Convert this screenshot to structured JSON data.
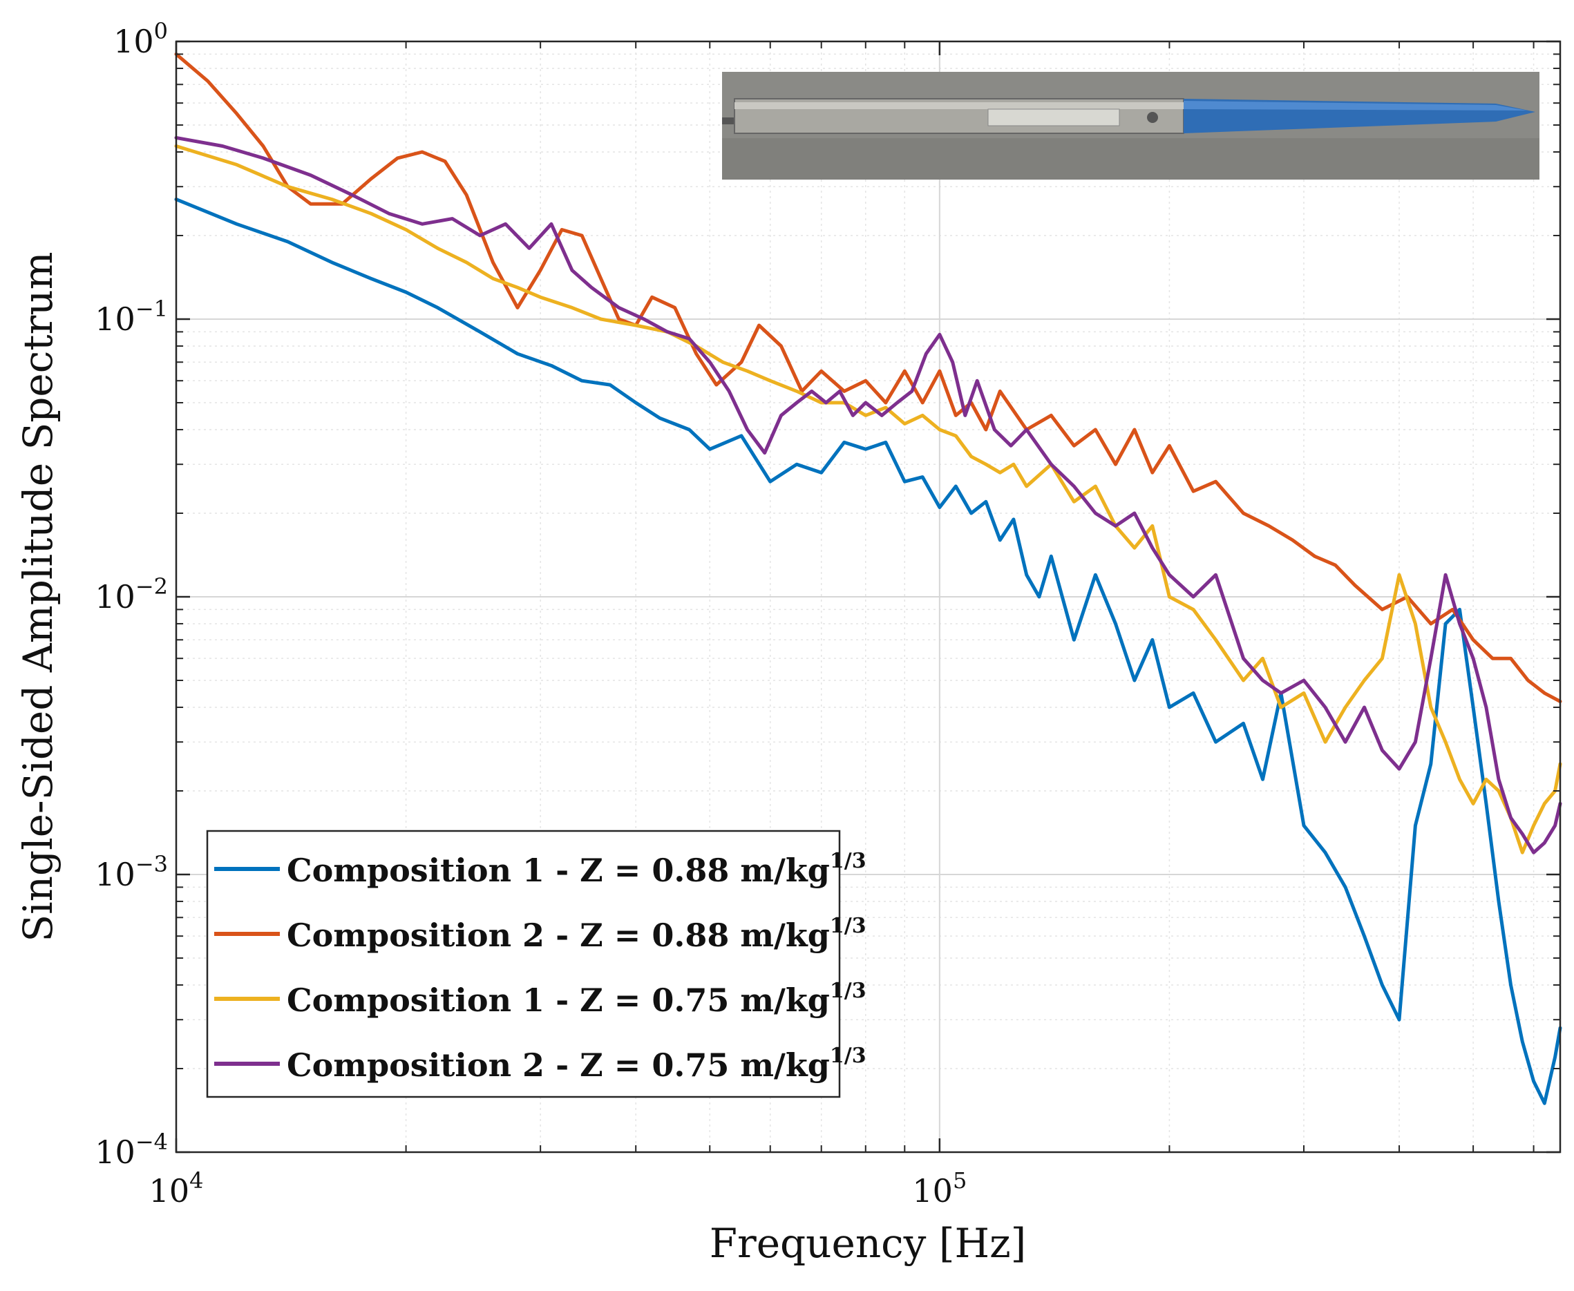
{
  "chart_data": {
    "type": "line",
    "title": "",
    "xlabel": "Frequency [Hz]",
    "ylabel": "Single-Sided Amplitude Spectrum",
    "xscale": "log",
    "yscale": "log",
    "xlim": [
      10000,
      650000
    ],
    "ylim": [
      0.0001,
      1
    ],
    "grid": true,
    "x_ticks": [
      {
        "value": 10000,
        "base": "10",
        "exp": "4"
      },
      {
        "value": 100000,
        "base": "10",
        "exp": "5"
      }
    ],
    "y_ticks": [
      {
        "value": 1,
        "base": "10",
        "exp": "0"
      },
      {
        "value": 0.1,
        "base": "10",
        "exp": "−1"
      },
      {
        "value": 0.01,
        "base": "10",
        "exp": "−2"
      },
      {
        "value": 0.001,
        "base": "10",
        "exp": "−3"
      },
      {
        "value": 0.0001,
        "base": "10",
        "exp": "−4"
      }
    ],
    "legend_position": "bottom-left",
    "inset_image": {
      "description": "photo of pressure probe sensor",
      "label": "pencil-probe-photo"
    },
    "series": [
      {
        "name": "Composition 1 - Z = 0.88 m/kg",
        "exp": "1/3",
        "color": "#0072BD",
        "x": [
          10000,
          12000,
          14000,
          16000,
          18000,
          20000,
          22000,
          25000,
          28000,
          31000,
          34000,
          37000,
          40000,
          43000,
          47000,
          50000,
          55000,
          60000,
          65000,
          70000,
          75000,
          80000,
          85000,
          90000,
          95000,
          100000,
          105000,
          110000,
          115000,
          120000,
          125000,
          130000,
          135000,
          140000,
          150000,
          160000,
          170000,
          180000,
          190000,
          200000,
          215000,
          230000,
          250000,
          265000,
          280000,
          300000,
          320000,
          340000,
          360000,
          380000,
          400000,
          420000,
          440000,
          460000,
          480000,
          500000,
          520000,
          540000,
          560000,
          580000,
          600000,
          620000,
          640000,
          650000
        ],
        "y": [
          0.27,
          0.22,
          0.19,
          0.16,
          0.14,
          0.125,
          0.11,
          0.09,
          0.075,
          0.068,
          0.06,
          0.058,
          0.05,
          0.044,
          0.04,
          0.034,
          0.038,
          0.026,
          0.03,
          0.028,
          0.036,
          0.034,
          0.036,
          0.026,
          0.027,
          0.021,
          0.025,
          0.02,
          0.022,
          0.016,
          0.019,
          0.012,
          0.01,
          0.014,
          0.007,
          0.012,
          0.008,
          0.005,
          0.007,
          0.004,
          0.0045,
          0.003,
          0.0035,
          0.0022,
          0.0045,
          0.0015,
          0.0012,
          0.0009,
          0.0006,
          0.0004,
          0.0003,
          0.0015,
          0.0025,
          0.008,
          0.009,
          0.004,
          0.0018,
          0.0008,
          0.0004,
          0.00025,
          0.00018,
          0.00015,
          0.00022,
          0.00028
        ]
      },
      {
        "name": "Composition 2 - Z = 0.88 m/kg",
        "exp": "1/3",
        "color": "#D95319",
        "x": [
          10000,
          11000,
          12000,
          13000,
          14000,
          15000,
          16500,
          18000,
          19500,
          21000,
          22500,
          24000,
          26000,
          28000,
          30000,
          32000,
          34000,
          36000,
          38000,
          40000,
          42000,
          45000,
          48000,
          51000,
          55000,
          58000,
          62000,
          66000,
          70000,
          75000,
          80000,
          85000,
          90000,
          95000,
          100000,
          105000,
          110000,
          115000,
          120000,
          130000,
          140000,
          150000,
          160000,
          170000,
          180000,
          190000,
          200000,
          215000,
          230000,
          250000,
          270000,
          290000,
          310000,
          330000,
          350000,
          380000,
          410000,
          440000,
          470000,
          500000,
          530000,
          560000,
          590000,
          620000,
          650000
        ],
        "y": [
          0.9,
          0.72,
          0.55,
          0.42,
          0.3,
          0.26,
          0.26,
          0.32,
          0.38,
          0.4,
          0.37,
          0.28,
          0.16,
          0.11,
          0.15,
          0.21,
          0.2,
          0.14,
          0.1,
          0.095,
          0.12,
          0.11,
          0.075,
          0.058,
          0.07,
          0.095,
          0.08,
          0.055,
          0.065,
          0.055,
          0.06,
          0.05,
          0.065,
          0.05,
          0.065,
          0.045,
          0.05,
          0.04,
          0.055,
          0.04,
          0.045,
          0.035,
          0.04,
          0.03,
          0.04,
          0.028,
          0.035,
          0.024,
          0.026,
          0.02,
          0.018,
          0.016,
          0.014,
          0.013,
          0.011,
          0.009,
          0.01,
          0.008,
          0.009,
          0.007,
          0.006,
          0.006,
          0.005,
          0.0045,
          0.0042
        ]
      },
      {
        "name": "Composition 1 - Z = 0.75 m/kg",
        "exp": "1/3",
        "color": "#EDB120",
        "x": [
          10000,
          12000,
          14000,
          16000,
          18000,
          20000,
          22000,
          24000,
          26000,
          28000,
          30000,
          33000,
          36000,
          40000,
          44000,
          48000,
          52000,
          56000,
          60000,
          65000,
          70000,
          75000,
          80000,
          85000,
          90000,
          95000,
          100000,
          105000,
          110000,
          115000,
          120000,
          125000,
          130000,
          140000,
          150000,
          160000,
          170000,
          180000,
          190000,
          200000,
          215000,
          230000,
          250000,
          265000,
          280000,
          300000,
          320000,
          340000,
          360000,
          380000,
          400000,
          420000,
          440000,
          460000,
          480000,
          500000,
          520000,
          540000,
          560000,
          580000,
          600000,
          620000,
          640000,
          650000
        ],
        "y": [
          0.42,
          0.36,
          0.3,
          0.27,
          0.24,
          0.21,
          0.18,
          0.16,
          0.14,
          0.13,
          0.12,
          0.11,
          0.1,
          0.095,
          0.09,
          0.08,
          0.07,
          0.065,
          0.06,
          0.055,
          0.05,
          0.05,
          0.045,
          0.048,
          0.042,
          0.045,
          0.04,
          0.038,
          0.032,
          0.03,
          0.028,
          0.03,
          0.025,
          0.03,
          0.022,
          0.025,
          0.018,
          0.015,
          0.018,
          0.01,
          0.009,
          0.007,
          0.005,
          0.006,
          0.004,
          0.0045,
          0.003,
          0.004,
          0.005,
          0.006,
          0.012,
          0.008,
          0.004,
          0.003,
          0.0022,
          0.0018,
          0.0022,
          0.002,
          0.0016,
          0.0012,
          0.0015,
          0.0018,
          0.002,
          0.0025
        ]
      },
      {
        "name": "Composition 2 - Z = 0.75 m/kg",
        "exp": "1/3",
        "color": "#7E2F8E",
        "x": [
          10000,
          11500,
          13000,
          15000,
          17000,
          19000,
          21000,
          23000,
          25000,
          27000,
          29000,
          31000,
          33000,
          35000,
          38000,
          41000,
          44000,
          47000,
          50000,
          53000,
          56000,
          59000,
          62000,
          65000,
          68000,
          71000,
          74000,
          77000,
          80000,
          84000,
          88000,
          92000,
          96000,
          100000,
          104000,
          108000,
          112000,
          118000,
          124000,
          130000,
          140000,
          150000,
          160000,
          170000,
          180000,
          190000,
          200000,
          215000,
          230000,
          250000,
          265000,
          280000,
          300000,
          320000,
          340000,
          360000,
          380000,
          400000,
          420000,
          440000,
          460000,
          480000,
          500000,
          520000,
          540000,
          560000,
          580000,
          600000,
          620000,
          640000,
          650000
        ],
        "y": [
          0.45,
          0.42,
          0.38,
          0.33,
          0.28,
          0.24,
          0.22,
          0.23,
          0.2,
          0.22,
          0.18,
          0.22,
          0.15,
          0.13,
          0.11,
          0.1,
          0.09,
          0.085,
          0.07,
          0.055,
          0.04,
          0.033,
          0.045,
          0.05,
          0.055,
          0.05,
          0.055,
          0.045,
          0.05,
          0.045,
          0.05,
          0.055,
          0.075,
          0.088,
          0.07,
          0.045,
          0.06,
          0.04,
          0.035,
          0.04,
          0.03,
          0.025,
          0.02,
          0.018,
          0.02,
          0.015,
          0.012,
          0.01,
          0.012,
          0.006,
          0.005,
          0.0045,
          0.005,
          0.004,
          0.003,
          0.004,
          0.0028,
          0.0024,
          0.003,
          0.006,
          0.012,
          0.008,
          0.006,
          0.004,
          0.0022,
          0.0016,
          0.0014,
          0.0012,
          0.0013,
          0.0015,
          0.0018
        ]
      }
    ]
  }
}
